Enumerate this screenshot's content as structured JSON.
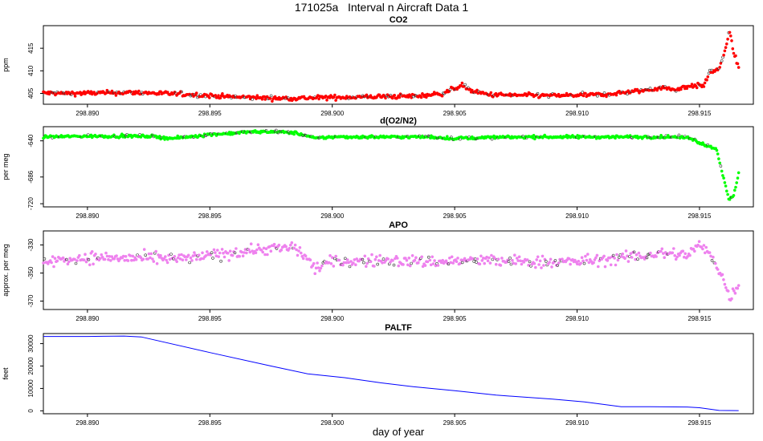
{
  "page": {
    "title": "171025a   Interval n Aircraft Data 1",
    "xlabel": "day of year"
  },
  "colors": {
    "co2": "#ff0000",
    "o2n2": "#00ff00",
    "apo": "#ee82ee",
    "paltf": "#0000ff",
    "frame": "#000000"
  },
  "chart_data": [
    {
      "type": "scatter",
      "title": "CO2",
      "ylabel": "ppm",
      "xlim": [
        298.8882,
        298.9172
      ],
      "ylim": [
        402.6,
        420.0
      ],
      "xticks": [
        "298.890",
        "298.895",
        "298.900",
        "298.905",
        "298.910",
        "298.915"
      ],
      "yticks": [
        "405",
        "410",
        "415"
      ],
      "series": [
        {
          "name": "CO2",
          "color": "#ff0000",
          "x_start": 298.8882,
          "x_end": 298.9166,
          "n": 700,
          "noise": 0.35,
          "profile_x": [
            298.8882,
            298.889,
            298.8905,
            298.892,
            298.894,
            298.896,
            298.898,
            298.9,
            298.902,
            298.9035,
            298.9045,
            298.9053,
            298.9058,
            298.9065,
            298.9075,
            298.909,
            298.911,
            298.9125,
            298.9135,
            298.914,
            298.9146,
            298.9152,
            298.9154,
            298.9158,
            298.916,
            298.9162,
            298.9163,
            298.9164,
            298.9165,
            298.9166
          ],
          "profile_y": [
            405.1,
            405.0,
            405.1,
            405.2,
            404.8,
            404.2,
            403.9,
            404.1,
            404.3,
            404.4,
            405.0,
            406.8,
            405.3,
            404.7,
            404.6,
            404.5,
            404.7,
            405.5,
            406.3,
            405.8,
            406.7,
            406.7,
            409.8,
            410.3,
            413.5,
            418.5,
            417.0,
            413.8,
            412.5,
            410.7
          ]
        }
      ]
    },
    {
      "type": "scatter",
      "title": "d(O2/N2)",
      "ylabel": "per meg",
      "xlim": [
        298.8882,
        298.9172
      ],
      "ylim": [
        -724.0,
        -622.0
      ],
      "xticks": [
        "298.890",
        "298.895",
        "298.900",
        "298.905",
        "298.910",
        "298.915"
      ],
      "yticks": [
        "-640",
        "-686",
        "-720"
      ],
      "series": [
        {
          "name": "d(O2/N2)",
          "color": "#00ff00",
          "x_start": 298.8882,
          "x_end": 298.9166,
          "n": 700,
          "noise": 1.3,
          "profile_x": [
            298.8882,
            298.89,
            298.8925,
            298.8935,
            298.895,
            298.8965,
            298.8975,
            298.8985,
            298.899,
            298.8993,
            298.8996,
            298.9,
            298.902,
            298.904,
            298.905,
            298.906,
            298.908,
            298.91,
            298.912,
            298.914,
            298.9146,
            298.9152,
            298.9157,
            298.916,
            298.9162,
            298.9164,
            298.9165,
            298.9166
          ],
          "profile_y": [
            -635.0,
            -634.0,
            -634.0,
            -637.0,
            -632.0,
            -629.0,
            -628.0,
            -630.0,
            -634.0,
            -637.0,
            -636.0,
            -635.0,
            -635.0,
            -635.0,
            -637.0,
            -636.0,
            -635.0,
            -635.0,
            -635.0,
            -635.0,
            -636.0,
            -645.0,
            -650.0,
            -690.0,
            -715.0,
            -710.0,
            -695.0,
            -680.0
          ]
        }
      ]
    },
    {
      "type": "scatter",
      "title": "APO",
      "ylabel": "approx. per meg",
      "xlim": [
        298.8882,
        298.9172
      ],
      "ylim": [
        -376.0,
        -320.0
      ],
      "xticks": [
        "298.890",
        "298.895",
        "298.900",
        "298.905",
        "298.910",
        "298.915"
      ],
      "yticks": [
        "-330",
        "-350",
        "-370"
      ],
      "series": [
        {
          "name": "APO",
          "color": "#ee82ee",
          "x_start": 298.8882,
          "x_end": 298.9166,
          "n": 600,
          "noise": 3.0,
          "profile_x": [
            298.8882,
            298.89,
            298.894,
            298.897,
            298.8985,
            298.899,
            298.8993,
            298.8996,
            298.9,
            298.902,
            298.904,
            298.906,
            298.908,
            298.91,
            298.912,
            298.9135,
            298.9145,
            298.915,
            298.9155,
            298.916,
            298.9162,
            298.9164,
            298.9166
          ],
          "profile_y": [
            -342.0,
            -339.0,
            -340.0,
            -333.0,
            -332.0,
            -340.0,
            -347.0,
            -344.0,
            -342.0,
            -341.0,
            -342.0,
            -341.0,
            -342.0,
            -342.0,
            -339.0,
            -336.0,
            -337.0,
            -330.0,
            -338.0,
            -355.0,
            -367.0,
            -364.0,
            -358.0
          ]
        }
      ]
    },
    {
      "type": "line",
      "title": "PALTF",
      "ylabel": "feet",
      "xlim": [
        298.8882,
        298.9172
      ],
      "ylim": [
        -1300,
        34500
      ],
      "xticks": [
        "298.890",
        "298.895",
        "298.900",
        "298.905",
        "298.910",
        "298.915"
      ],
      "yticks": [
        "0",
        "10000",
        "20000",
        "30000"
      ],
      "series": [
        {
          "name": "PALTF",
          "color": "#0000ff",
          "x": [
            298.8882,
            298.89,
            298.8915,
            298.8922,
            298.895,
            298.8975,
            298.899,
            298.9005,
            298.902,
            298.9033,
            298.905,
            298.9067,
            298.909,
            298.9103,
            298.9118,
            298.913,
            298.9145,
            298.915,
            298.9158,
            298.9166
          ],
          "y": [
            33200,
            33200,
            33400,
            33000,
            26000,
            20000,
            16500,
            14800,
            12500,
            10800,
            9000,
            7000,
            5200,
            4000,
            1800,
            1800,
            1700,
            1400,
            150,
            100
          ]
        }
      ]
    }
  ]
}
